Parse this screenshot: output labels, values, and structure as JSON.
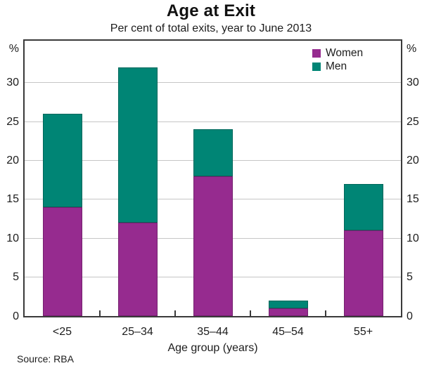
{
  "header": {
    "title": "Age at Exit",
    "subtitle": "Per cent of total exits, year to June 2013"
  },
  "footer": {
    "x_axis_caption": "Age group (years)",
    "source": "Source: RBA"
  },
  "axes": {
    "y_unit_left": "%",
    "y_unit_right": "%",
    "y_ticks": [
      0,
      5,
      10,
      15,
      20,
      25,
      30
    ]
  },
  "colors": {
    "women": "#962B8F",
    "men": "#008575",
    "gridline": "#C6C6C6",
    "frame": "#3A3A3A"
  },
  "chart_data": {
    "type": "bar",
    "stacked": true,
    "title": "Age at Exit",
    "subtitle": "Per cent of total exits, year to June 2013",
    "xlabel": "Age group (years)",
    "ylabel": "%",
    "ylim": [
      0,
      35.4
    ],
    "y_ticks": [
      0,
      5,
      10,
      15,
      20,
      25,
      30
    ],
    "grid": true,
    "legend_position": "top-right",
    "categories": [
      "<25",
      "25–34",
      "35–44",
      "45–54",
      "55+"
    ],
    "series": [
      {
        "name": "Women",
        "color": "#962B8F",
        "values": [
          14,
          12,
          18,
          1,
          11
        ]
      },
      {
        "name": "Men",
        "color": "#008575",
        "values": [
          12,
          20,
          6,
          1,
          6
        ]
      }
    ],
    "totals": [
      26,
      32,
      24,
      2,
      17
    ],
    "source": "Source: RBA"
  }
}
